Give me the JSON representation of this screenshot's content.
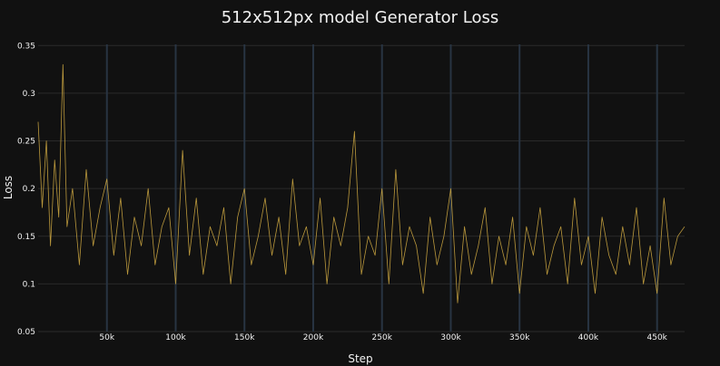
{
  "chart_data": {
    "type": "line",
    "title": "512x512px model Generator Loss",
    "xlabel": "Step",
    "ylabel": "Loss",
    "xlim": [
      0,
      470000
    ],
    "ylim": [
      0.05,
      0.355
    ],
    "xticks": [
      50000,
      100000,
      150000,
      200000,
      250000,
      300000,
      350000,
      400000,
      450000
    ],
    "xtick_labels": [
      "50k",
      "100k",
      "150k",
      "200k",
      "250k",
      "300k",
      "350k",
      "400k",
      "450k"
    ],
    "yticks": [
      0.05,
      0.1,
      0.15,
      0.2,
      0.25,
      0.3,
      0.35
    ],
    "ytick_labels": [
      "0.05",
      "0.1",
      "0.15",
      "0.2",
      "0.25",
      "0.3",
      "0.35"
    ],
    "grid": true,
    "legend": false,
    "series": [
      {
        "color": "#c9a440",
        "x": [
          0,
          3000,
          6000,
          9000,
          12000,
          15000,
          18000,
          21000,
          25000,
          30000,
          35000,
          40000,
          45000,
          50000,
          55000,
          60000,
          65000,
          70000,
          75000,
          80000,
          85000,
          90000,
          95000,
          100000,
          105000,
          110000,
          115000,
          120000,
          125000,
          130000,
          135000,
          140000,
          145000,
          150000,
          155000,
          160000,
          165000,
          170000,
          175000,
          180000,
          185000,
          190000,
          195000,
          200000,
          205000,
          210000,
          215000,
          220000,
          225000,
          230000,
          235000,
          240000,
          245000,
          250000,
          255000,
          260000,
          265000,
          270000,
          275000,
          280000,
          285000,
          290000,
          295000,
          300000,
          305000,
          310000,
          315000,
          320000,
          325000,
          330000,
          335000,
          340000,
          345000,
          350000,
          355000,
          360000,
          365000,
          370000,
          375000,
          380000,
          385000,
          390000,
          395000,
          400000,
          405000,
          410000,
          415000,
          420000,
          425000,
          430000,
          435000,
          440000,
          445000,
          450000,
          455000,
          460000,
          465000,
          470000
        ],
        "y": [
          0.27,
          0.18,
          0.25,
          0.14,
          0.23,
          0.17,
          0.33,
          0.16,
          0.2,
          0.12,
          0.22,
          0.14,
          0.18,
          0.21,
          0.13,
          0.19,
          0.11,
          0.17,
          0.14,
          0.2,
          0.12,
          0.16,
          0.18,
          0.1,
          0.24,
          0.13,
          0.19,
          0.11,
          0.16,
          0.14,
          0.18,
          0.1,
          0.17,
          0.2,
          0.12,
          0.15,
          0.19,
          0.13,
          0.17,
          0.11,
          0.21,
          0.14,
          0.16,
          0.12,
          0.19,
          0.1,
          0.17,
          0.14,
          0.18,
          0.26,
          0.11,
          0.15,
          0.13,
          0.2,
          0.1,
          0.22,
          0.12,
          0.16,
          0.14,
          0.09,
          0.17,
          0.12,
          0.15,
          0.2,
          0.08,
          0.16,
          0.11,
          0.14,
          0.18,
          0.1,
          0.15,
          0.12,
          0.17,
          0.09,
          0.16,
          0.13,
          0.18,
          0.11,
          0.14,
          0.16,
          0.1,
          0.19,
          0.12,
          0.15,
          0.09,
          0.17,
          0.13,
          0.11,
          0.16,
          0.12,
          0.18,
          0.1,
          0.14,
          0.09,
          0.19,
          0.12,
          0.15,
          0.16
        ]
      }
    ]
  }
}
